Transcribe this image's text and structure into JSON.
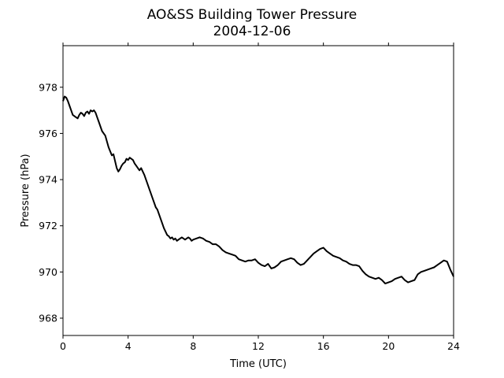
{
  "chart_data": {
    "type": "line",
    "title": "AO&SS Building Tower Pressure",
    "subtitle": "2004-12-06",
    "xlabel": "Time (UTC)",
    "ylabel": "Pressure (hPa)",
    "xlim": [
      0,
      24
    ],
    "ylim": [
      967.25,
      979.8
    ],
    "xticks": [
      0,
      4,
      8,
      12,
      16,
      20,
      24
    ],
    "yticks": [
      968,
      970,
      972,
      974,
      976,
      978
    ],
    "grid": false,
    "line_color": "#000000",
    "series": [
      {
        "x": [
          0.0,
          0.1,
          0.2,
          0.3,
          0.4,
          0.5,
          0.6,
          0.7,
          0.8,
          0.9,
          1.0,
          1.1,
          1.2,
          1.3,
          1.4,
          1.5,
          1.6,
          1.7,
          1.8,
          1.9,
          2.0,
          2.1,
          2.2,
          2.4,
          2.6,
          2.8,
          3.0,
          3.1,
          3.2,
          3.3,
          3.4,
          3.5,
          3.6,
          3.7,
          3.8,
          3.9,
          4.0,
          4.1,
          4.2,
          4.3,
          4.4,
          4.5,
          4.6,
          4.7,
          4.8,
          4.9,
          5.0,
          5.1,
          5.2,
          5.3,
          5.4,
          5.5,
          5.6,
          5.7,
          5.8,
          5.9,
          6.0,
          6.1,
          6.2,
          6.3,
          6.4,
          6.5,
          6.6,
          6.7,
          6.8,
          6.9,
          7.0,
          7.1,
          7.2,
          7.3,
          7.4,
          7.5,
          7.6,
          7.7,
          7.8,
          7.9,
          8.0,
          8.2,
          8.4,
          8.6,
          8.8,
          9.0,
          9.2,
          9.4,
          9.6,
          9.8,
          10.0,
          10.2,
          10.4,
          10.6,
          10.8,
          11.0,
          11.2,
          11.4,
          11.6,
          11.8,
          12.0,
          12.2,
          12.4,
          12.6,
          12.8,
          13.0,
          13.2,
          13.4,
          13.6,
          13.8,
          14.0,
          14.2,
          14.4,
          14.6,
          14.8,
          15.0,
          15.2,
          15.4,
          15.6,
          15.8,
          16.0,
          16.2,
          16.4,
          16.6,
          16.8,
          17.0,
          17.2,
          17.4,
          17.6,
          17.8,
          18.0,
          18.2,
          18.4,
          18.6,
          18.8,
          19.0,
          19.2,
          19.4,
          19.6,
          19.8,
          20.0,
          20.2,
          20.4,
          20.6,
          20.8,
          21.0,
          21.2,
          21.4,
          21.6,
          21.8,
          22.0,
          22.2,
          22.4,
          22.6,
          22.8,
          23.0,
          23.2,
          23.4,
          23.6,
          23.8,
          24.0
        ],
        "y": [
          977.4,
          977.6,
          977.55,
          977.4,
          977.2,
          977.0,
          976.8,
          976.75,
          976.7,
          976.65,
          976.8,
          976.9,
          976.85,
          976.75,
          976.9,
          976.95,
          976.85,
          977.0,
          976.95,
          977.0,
          976.9,
          976.7,
          976.5,
          976.1,
          975.9,
          975.4,
          975.05,
          975.1,
          974.8,
          974.5,
          974.35,
          974.45,
          974.6,
          974.7,
          974.75,
          974.9,
          974.85,
          974.95,
          974.9,
          974.85,
          974.7,
          974.6,
          974.5,
          974.4,
          974.5,
          974.35,
          974.2,
          974.0,
          973.8,
          973.6,
          973.4,
          973.2,
          973.0,
          972.8,
          972.7,
          972.5,
          972.3,
          972.1,
          971.9,
          971.75,
          971.6,
          971.55,
          971.45,
          971.5,
          971.4,
          971.45,
          971.35,
          971.4,
          971.45,
          971.5,
          971.45,
          971.4,
          971.45,
          971.5,
          971.45,
          971.35,
          971.4,
          971.45,
          971.5,
          971.45,
          971.35,
          971.3,
          971.2,
          971.2,
          971.1,
          970.95,
          970.85,
          970.8,
          970.75,
          970.7,
          970.55,
          970.5,
          970.45,
          970.5,
          970.5,
          970.55,
          970.4,
          970.3,
          970.25,
          970.35,
          970.15,
          970.2,
          970.3,
          970.45,
          970.5,
          970.55,
          970.6,
          970.55,
          970.4,
          970.3,
          970.35,
          970.5,
          970.65,
          970.8,
          970.9,
          971.0,
          971.05,
          970.9,
          970.8,
          970.7,
          970.65,
          970.6,
          970.5,
          970.45,
          970.35,
          970.3,
          970.3,
          970.25,
          970.05,
          969.9,
          969.8,
          969.75,
          969.7,
          969.75,
          969.65,
          969.5,
          969.55,
          969.6,
          969.7,
          969.75,
          969.8,
          969.65,
          969.55,
          969.6,
          969.65,
          969.9,
          970.0,
          970.05,
          970.1,
          970.15,
          970.2,
          970.3,
          970.4,
          970.5,
          970.45,
          970.1,
          969.8
        ]
      }
    ]
  }
}
